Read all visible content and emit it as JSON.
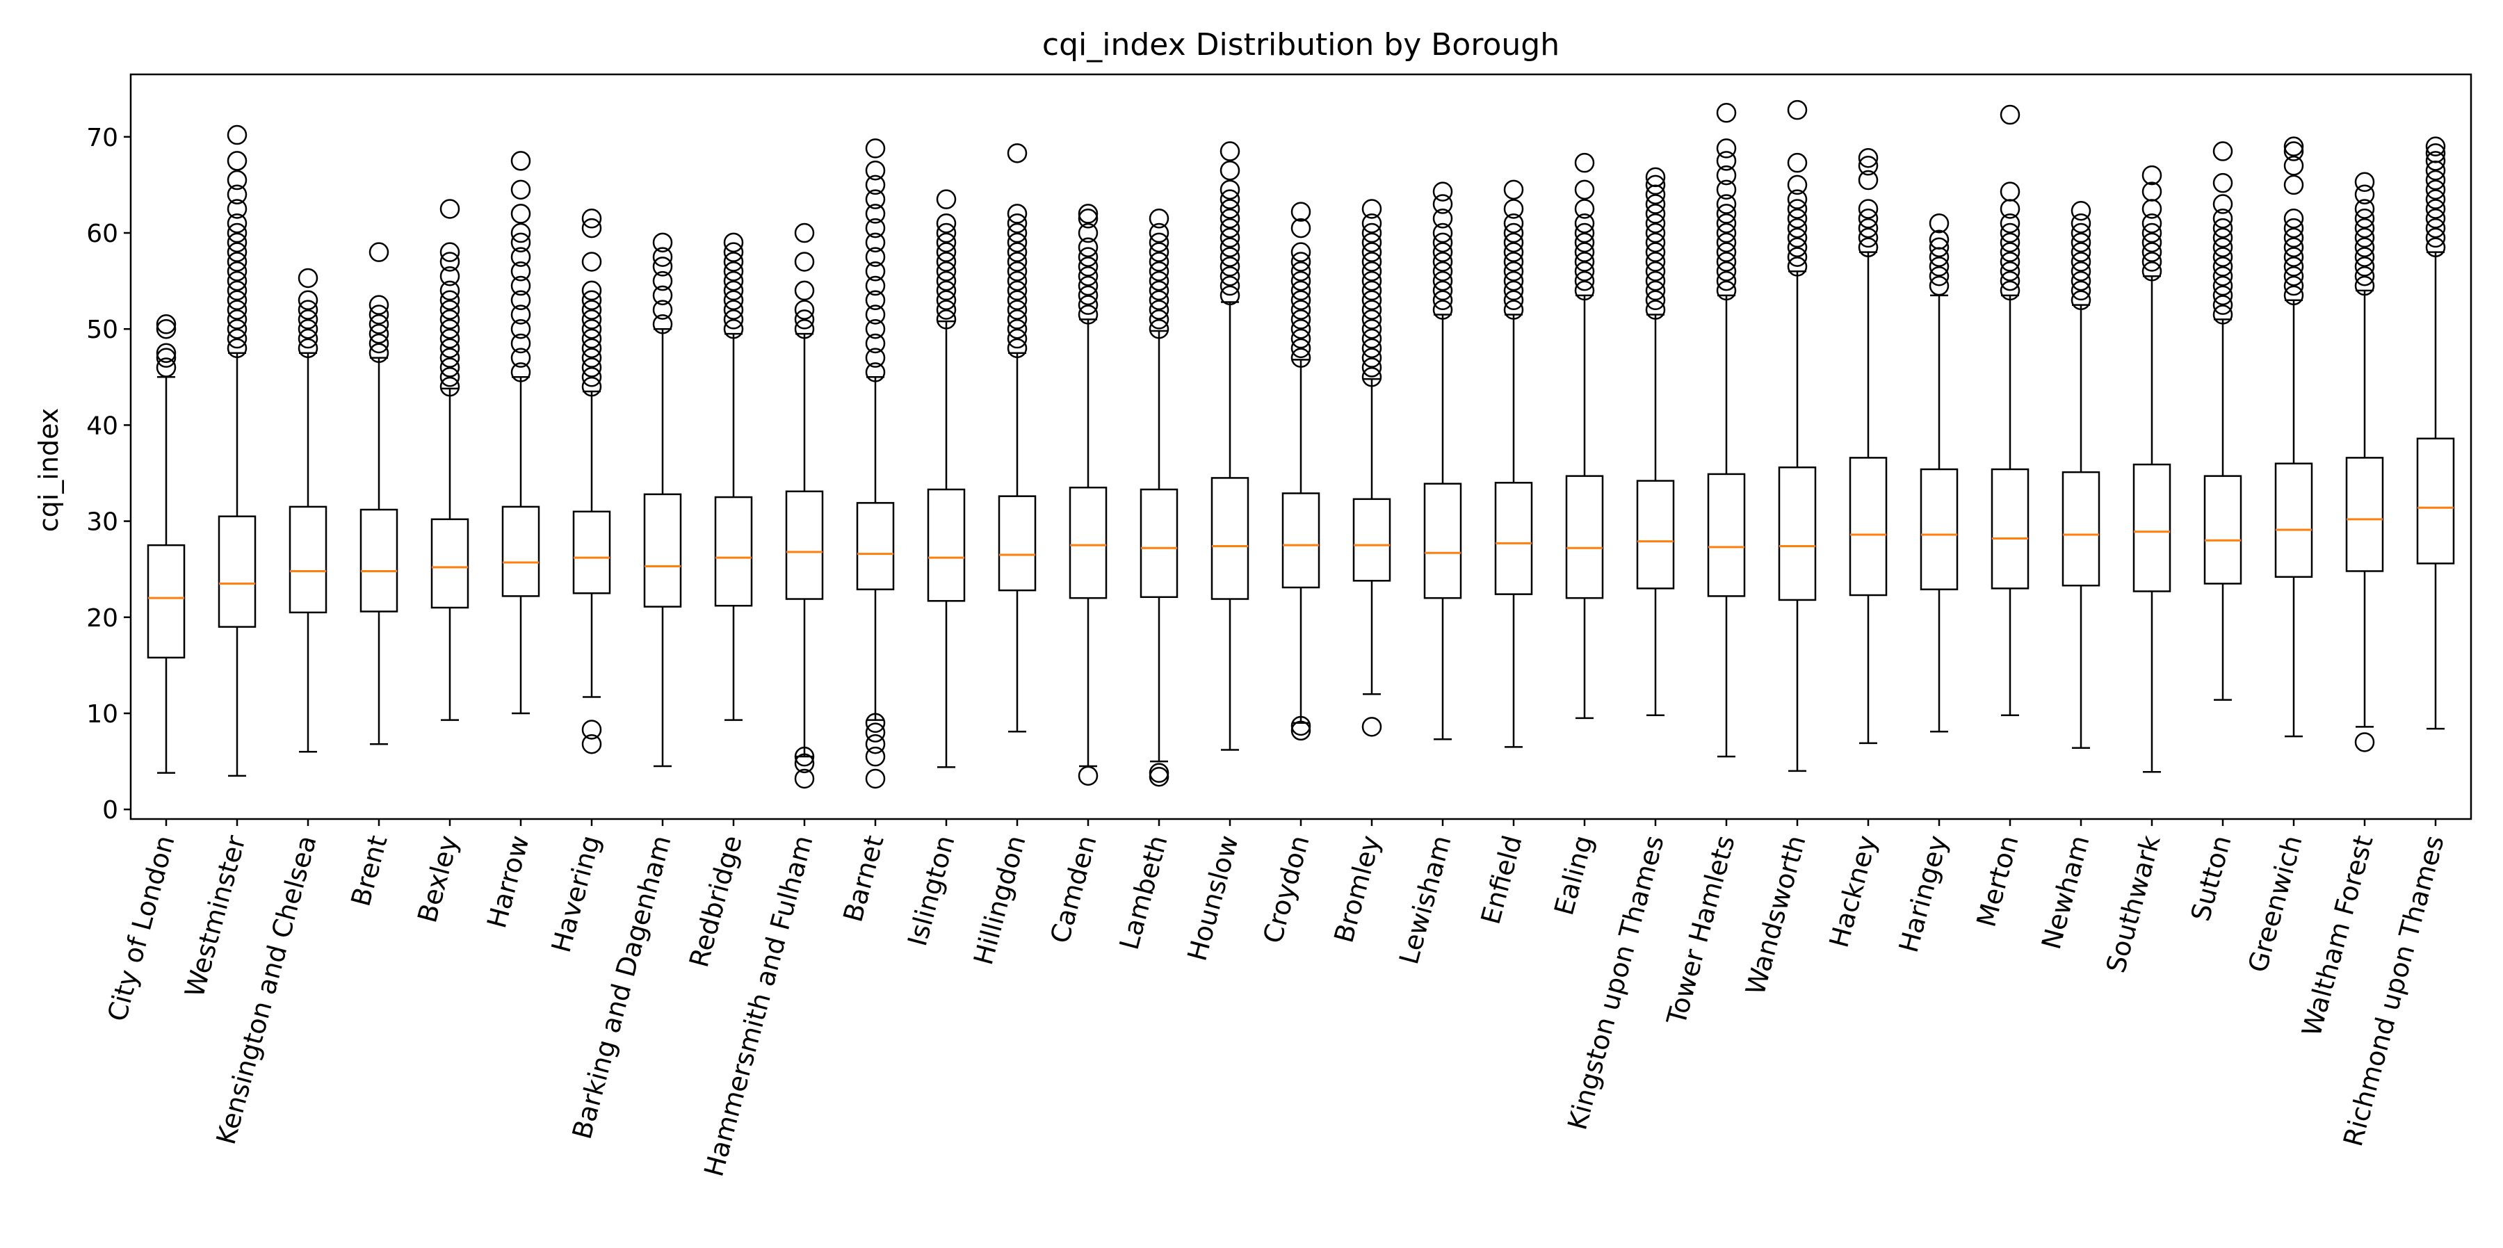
{
  "chart_data": {
    "type": "box",
    "title": "cqi_index Distribution by Borough",
    "xlabel": "",
    "ylabel": "cqi_index",
    "ylim": [
      -1,
      76.5
    ],
    "yticks": [
      0,
      10,
      20,
      30,
      40,
      50,
      60,
      70
    ],
    "grid": false,
    "colors": {
      "box": "#000000",
      "median": "#ff7f0e",
      "background": "#ffffff"
    },
    "categories": [
      "City of London",
      "Westminster",
      "Kensington and Chelsea",
      "Brent",
      "Bexley",
      "Harrow",
      "Havering",
      "Barking and Dagenham",
      "Redbridge",
      "Hammersmith and Fulham",
      "Barnet",
      "Islington",
      "Hillingdon",
      "Camden",
      "Lambeth",
      "Hounslow",
      "Croydon",
      "Bromley",
      "Lewisham",
      "Enfield",
      "Ealing",
      "Kingston upon Thames",
      "Tower Hamlets",
      "Wandsworth",
      "Hackney",
      "Haringey",
      "Merton",
      "Newham",
      "Southwark",
      "Sutton",
      "Greenwich",
      "Waltham Forest",
      "Richmond upon Thames"
    ],
    "series": [
      {
        "q1": 15.8,
        "median": 22.0,
        "q3": 27.5,
        "whisker_low": 3.8,
        "whisker_high": 45.0,
        "fliers": [
          46.0,
          47.0,
          47.5,
          50.0,
          50.5
        ]
      },
      {
        "q1": 19.0,
        "median": 23.5,
        "q3": 30.5,
        "whisker_low": 3.5,
        "whisker_high": 47.5,
        "fliers": [
          48,
          49,
          50,
          51,
          52,
          53,
          54,
          55,
          56,
          57,
          58,
          59,
          60,
          61,
          62.5,
          64,
          65.5,
          67.5,
          70.2
        ]
      },
      {
        "q1": 20.5,
        "median": 24.8,
        "q3": 31.5,
        "whisker_low": 6.0,
        "whisker_high": 47.5,
        "fliers": [
          48,
          49,
          50,
          51,
          52,
          53,
          55.3
        ]
      },
      {
        "q1": 20.6,
        "median": 24.8,
        "q3": 31.2,
        "whisker_low": 6.8,
        "whisker_high": 47.0,
        "fliers": [
          47.5,
          48.5,
          49.5,
          50.5,
          51.5,
          52.5,
          58.0
        ]
      },
      {
        "q1": 21.0,
        "median": 25.2,
        "q3": 30.2,
        "whisker_low": 9.3,
        "whisker_high": 43.8,
        "fliers": [
          44,
          45,
          46,
          47,
          48,
          49,
          50,
          51,
          52,
          53,
          54,
          55.5,
          57,
          58,
          62.5
        ]
      },
      {
        "q1": 22.2,
        "median": 25.7,
        "q3": 31.5,
        "whisker_low": 10.0,
        "whisker_high": 45.0,
        "fliers": [
          45.5,
          47,
          48.5,
          50,
          51.5,
          53,
          54.5,
          56,
          57.5,
          59,
          60,
          62,
          64.5,
          67.5
        ]
      },
      {
        "q1": 22.5,
        "median": 26.2,
        "q3": 31.0,
        "whisker_low": 11.7,
        "whisker_high": 43.5,
        "fliers": [
          6.8,
          8.3,
          44,
          45,
          46,
          47,
          48,
          49,
          50,
          51,
          52,
          53,
          54,
          57,
          60.5,
          61.5
        ]
      },
      {
        "q1": 21.1,
        "median": 25.3,
        "q3": 32.8,
        "whisker_low": 4.5,
        "whisker_high": 50.0,
        "fliers": [
          50.5,
          52,
          53.5,
          55,
          56.5,
          57.5,
          59.0
        ]
      },
      {
        "q1": 21.2,
        "median": 26.2,
        "q3": 32.5,
        "whisker_low": 9.3,
        "whisker_high": 49.5,
        "fliers": [
          50,
          51,
          52,
          53,
          54,
          55,
          56,
          57,
          58,
          59
        ]
      },
      {
        "q1": 21.9,
        "median": 26.8,
        "q3": 33.1,
        "whisker_low": 5.5,
        "whisker_high": 49.5,
        "fliers": [
          3.2,
          4.8,
          5.5,
          50,
          51,
          52,
          54,
          57,
          60.0
        ]
      },
      {
        "q1": 22.9,
        "median": 26.6,
        "q3": 31.9,
        "whisker_low": 9.3,
        "whisker_high": 45.0,
        "fliers": [
          3.2,
          5.5,
          6.8,
          8.0,
          9.0,
          45.5,
          47,
          48.5,
          50,
          51.5,
          53,
          54.5,
          56,
          57.5,
          59,
          60.5,
          62,
          63.5,
          65,
          66.5,
          68.8
        ]
      },
      {
        "q1": 21.7,
        "median": 26.2,
        "q3": 33.3,
        "whisker_low": 4.4,
        "whisker_high": 50.8,
        "fliers": [
          51,
          52,
          53,
          54,
          55,
          56,
          57,
          58,
          59,
          60,
          61,
          63.5
        ]
      },
      {
        "q1": 22.8,
        "median": 26.5,
        "q3": 32.6,
        "whisker_low": 8.1,
        "whisker_high": 47.5,
        "fliers": [
          48,
          49,
          50,
          51,
          52,
          53,
          54,
          55,
          56,
          57,
          58,
          59,
          60,
          61,
          62,
          68.3
        ]
      },
      {
        "q1": 22.0,
        "median": 27.5,
        "q3": 33.5,
        "whisker_low": 4.5,
        "whisker_high": 51.0,
        "fliers": [
          3.5,
          51.5,
          52.5,
          53.5,
          54.5,
          55.5,
          56.5,
          57.5,
          58.5,
          60,
          61.5,
          62.0
        ]
      },
      {
        "q1": 22.1,
        "median": 27.2,
        "q3": 33.3,
        "whisker_low": 5.0,
        "whisker_high": 49.8,
        "fliers": [
          3.4,
          3.8,
          50,
          51,
          52,
          53,
          54,
          55,
          56,
          57,
          58,
          59,
          60,
          61.5
        ]
      },
      {
        "q1": 21.9,
        "median": 27.4,
        "q3": 34.5,
        "whisker_low": 6.2,
        "whisker_high": 52.8,
        "fliers": [
          53.5,
          54.5,
          55.5,
          56.5,
          57.5,
          58.5,
          59.5,
          60.5,
          61.5,
          62.5,
          63.5,
          64.5,
          66.5,
          68.5
        ]
      },
      {
        "q1": 23.1,
        "median": 27.5,
        "q3": 32.9,
        "whisker_low": 9.0,
        "whisker_high": 46.8,
        "fliers": [
          8.2,
          8.7,
          47,
          48,
          49,
          50,
          51,
          52,
          53,
          54,
          55,
          56,
          57,
          58,
          60.5,
          62.2
        ]
      },
      {
        "q1": 23.8,
        "median": 27.5,
        "q3": 32.3,
        "whisker_low": 12.0,
        "whisker_high": 44.8,
        "fliers": [
          8.6,
          45,
          46,
          47,
          48,
          49,
          50,
          51,
          52,
          53,
          54,
          55,
          56,
          57,
          58,
          59,
          60,
          61,
          62.5
        ]
      },
      {
        "q1": 22.0,
        "median": 26.7,
        "q3": 33.9,
        "whisker_low": 7.3,
        "whisker_high": 51.5,
        "fliers": [
          52,
          53,
          54,
          55,
          56,
          57,
          58,
          59,
          60,
          61.5,
          63,
          64.3
        ]
      },
      {
        "q1": 22.4,
        "median": 27.7,
        "q3": 34.0,
        "whisker_low": 6.5,
        "whisker_high": 51.5,
        "fliers": [
          52,
          53,
          54,
          55,
          56,
          57,
          58,
          59,
          60,
          61,
          62.5,
          64.5
        ]
      },
      {
        "q1": 22.0,
        "median": 27.2,
        "q3": 34.7,
        "whisker_low": 9.5,
        "whisker_high": 53.5,
        "fliers": [
          54,
          55,
          56,
          57,
          58,
          59,
          60,
          61,
          62.5,
          64.5,
          67.3
        ]
      },
      {
        "q1": 23.0,
        "median": 27.9,
        "q3": 34.2,
        "whisker_low": 9.8,
        "whisker_high": 51.5,
        "fliers": [
          52,
          53,
          54,
          55,
          56,
          57,
          58,
          59,
          60,
          61,
          62,
          63,
          64,
          65,
          65.8
        ]
      },
      {
        "q1": 22.2,
        "median": 27.3,
        "q3": 34.9,
        "whisker_low": 5.5,
        "whisker_high": 53.5,
        "fliers": [
          54,
          55,
          56,
          57,
          58,
          59,
          60,
          61,
          62,
          63,
          64.5,
          66,
          67.5,
          68.8,
          72.5
        ]
      },
      {
        "q1": 21.8,
        "median": 27.4,
        "q3": 35.6,
        "whisker_low": 4.0,
        "whisker_high": 56.0,
        "fliers": [
          56.5,
          57.5,
          58.5,
          59.5,
          60.5,
          61.5,
          62.5,
          63.5,
          65,
          67.3,
          72.8
        ]
      },
      {
        "q1": 22.3,
        "median": 28.6,
        "q3": 36.6,
        "whisker_low": 6.9,
        "whisker_high": 58.0,
        "fliers": [
          58.5,
          59.5,
          60.5,
          61.5,
          62.5,
          65.5,
          67.0,
          67.8
        ]
      },
      {
        "q1": 22.9,
        "median": 28.6,
        "q3": 35.4,
        "whisker_low": 8.1,
        "whisker_high": 53.5,
        "fliers": [
          54.5,
          55.5,
          56.5,
          57.5,
          58.5,
          59.3,
          61.0
        ]
      },
      {
        "q1": 23.0,
        "median": 28.2,
        "q3": 35.4,
        "whisker_low": 9.8,
        "whisker_high": 53.5,
        "fliers": [
          54,
          55,
          56,
          57,
          58,
          59,
          60,
          61,
          62.5,
          64.3,
          72.3
        ]
      },
      {
        "q1": 23.3,
        "median": 28.6,
        "q3": 35.1,
        "whisker_low": 6.4,
        "whisker_high": 52.5,
        "fliers": [
          53,
          54,
          55,
          56,
          57,
          58,
          59,
          60,
          61,
          62.3
        ]
      },
      {
        "q1": 22.7,
        "median": 28.9,
        "q3": 35.9,
        "whisker_low": 3.9,
        "whisker_high": 55.5,
        "fliers": [
          56,
          57,
          58,
          59,
          60,
          61,
          62.5,
          64.3,
          66.0
        ]
      },
      {
        "q1": 23.5,
        "median": 28.0,
        "q3": 34.7,
        "whisker_low": 11.4,
        "whisker_high": 51.0,
        "fliers": [
          51.5,
          52.5,
          53.5,
          54.5,
          55.5,
          56.5,
          57.5,
          58.5,
          59.5,
          60.5,
          61.5,
          63.0,
          65.2,
          68.5
        ]
      },
      {
        "q1": 24.2,
        "median": 29.1,
        "q3": 36.0,
        "whisker_low": 7.6,
        "whisker_high": 53.0,
        "fliers": [
          53.5,
          54.5,
          55.5,
          56.5,
          57.5,
          58.5,
          59.5,
          60.5,
          61.5,
          65.0,
          67.0,
          68.5,
          69.0
        ]
      },
      {
        "q1": 24.8,
        "median": 30.2,
        "q3": 36.6,
        "whisker_low": 8.6,
        "whisker_high": 54.0,
        "fliers": [
          7.0,
          54.5,
          55.5,
          56.5,
          57.5,
          58.5,
          59.5,
          60.5,
          61.5,
          62.5,
          64.0,
          65.3
        ]
      },
      {
        "q1": 25.6,
        "median": 31.4,
        "q3": 38.6,
        "whisker_low": 8.4,
        "whisker_high": 58.0,
        "fliers": [
          58.5,
          59.5,
          60.5,
          61.5,
          62.5,
          63.5,
          64.5,
          65.5,
          66.5,
          67.5,
          68.3,
          69.0
        ]
      }
    ]
  }
}
